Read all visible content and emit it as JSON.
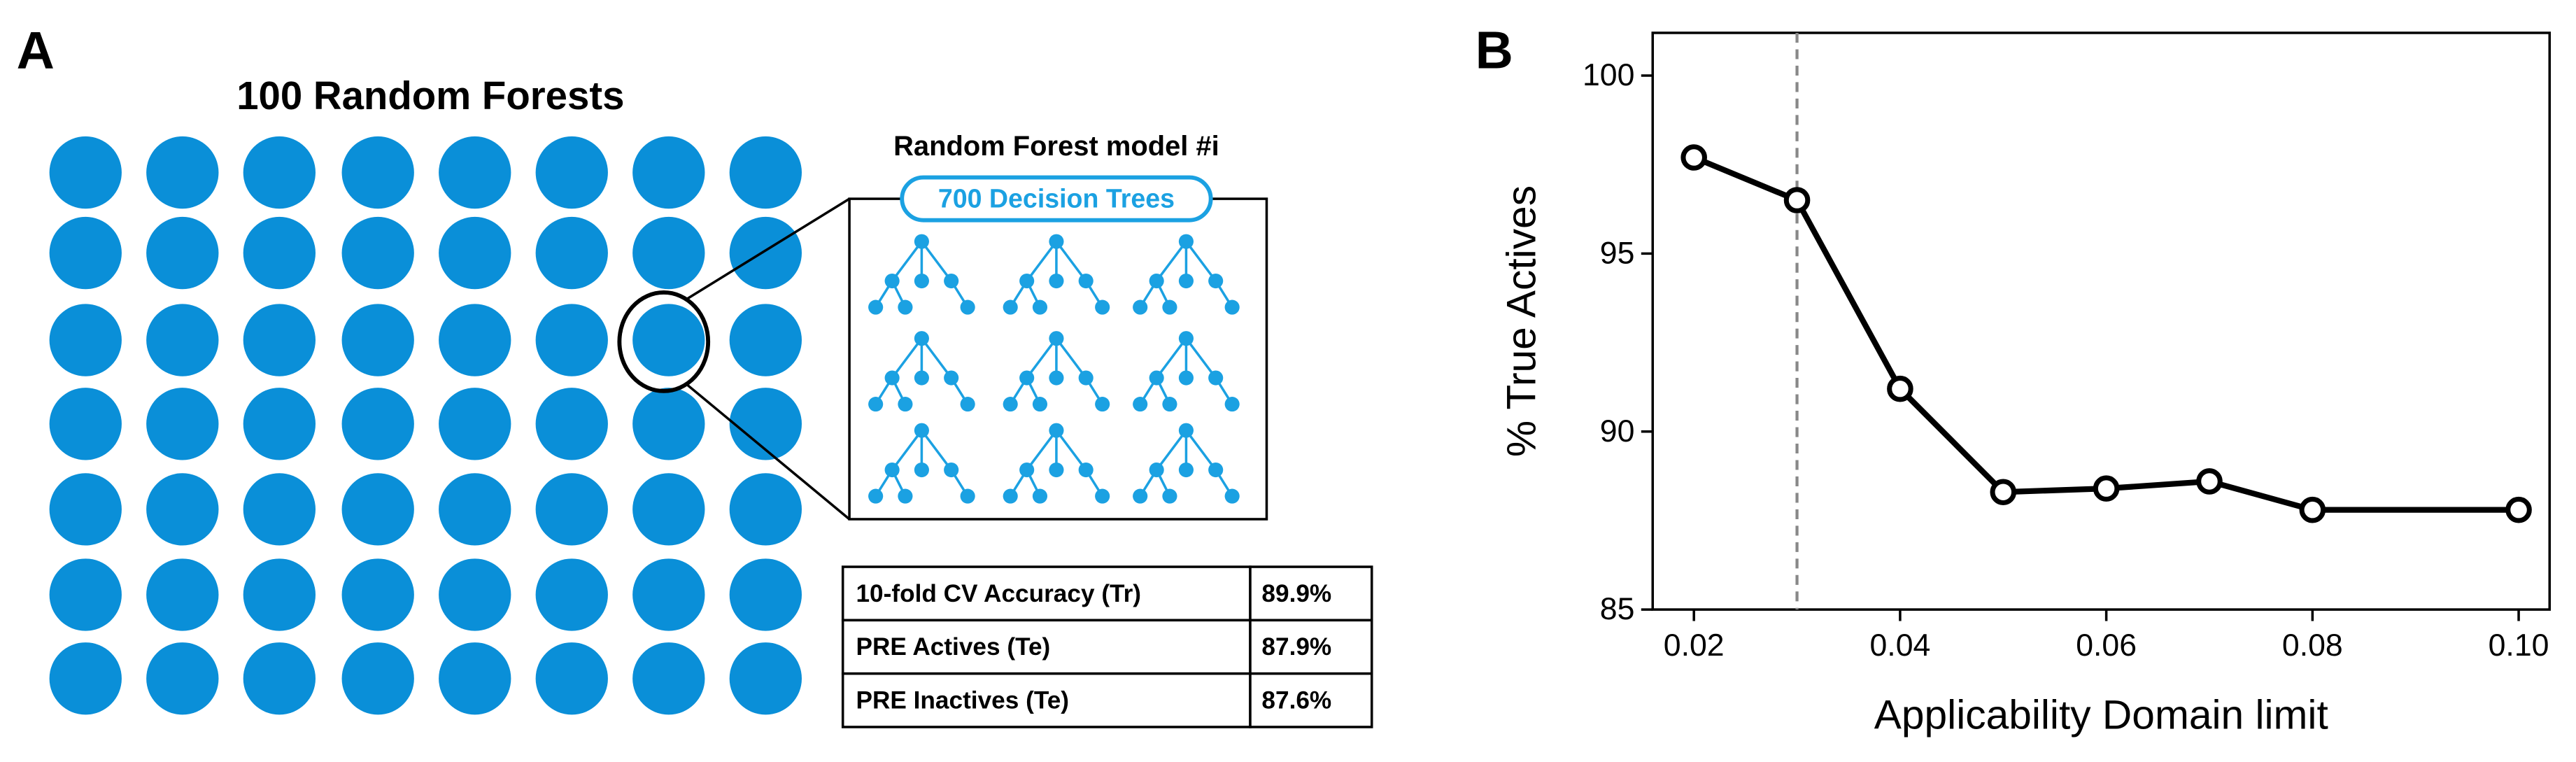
{
  "panel_a": {
    "label": "A",
    "title": "100 Random Forests",
    "model_title": "Random Forest model #i",
    "trees_label": "700 Decision Trees",
    "table": {
      "rows": [
        [
          "10-fold CV Accuracy (Tr)",
          "89.9%"
        ],
        [
          "PRE Actives (Te)",
          "87.9%"
        ],
        [
          "PRE Inactives (Te)",
          "87.6%"
        ]
      ]
    }
  },
  "chart_data": {
    "type": "line",
    "panel_label": "B",
    "x_label": "Applicability Domain limit",
    "y_label": "% True Actives",
    "x": [
      0.02,
      0.03,
      0.04,
      0.05,
      0.06,
      0.07,
      0.08,
      0.1
    ],
    "values": [
      97.7,
      96.5,
      91.2,
      88.3,
      88.4,
      88.6,
      87.8,
      87.8
    ],
    "color": "#000000",
    "vline": 0.03,
    "vline_color": "#888888",
    "xlim": [
      0.016,
      0.103
    ],
    "ylim": [
      85,
      101.2
    ],
    "xticks": [
      0.02,
      0.04,
      0.06,
      0.08,
      {
        "value": 0.1,
        "label": "0.10"
      }
    ],
    "yticks": [
      85,
      90,
      95,
      100
    ]
  }
}
